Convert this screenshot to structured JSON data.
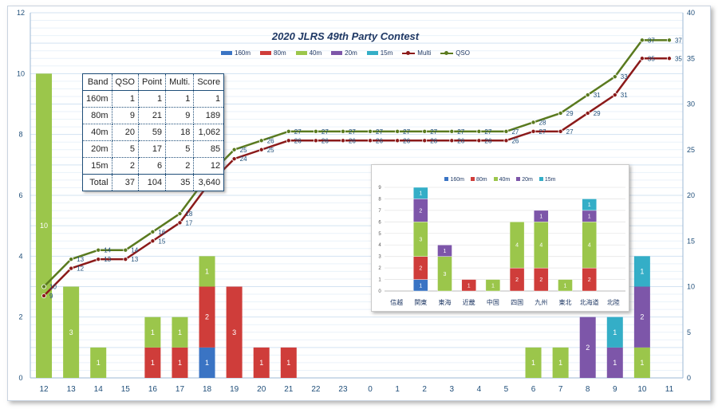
{
  "colors": {
    "b160": "#3a74c4",
    "b80": "#cf3d3a",
    "b40": "#9bc64b",
    "b20": "#7d56a9",
    "b15": "#34aec7",
    "multi": "#8b1a1a",
    "qso": "#5a7a1f"
  },
  "chart_data": [
    {
      "type": "bar",
      "title": "2020 JLRS 49th Party Contest",
      "categories": [
        "12",
        "13",
        "14",
        "15",
        "16",
        "17",
        "18",
        "19",
        "20",
        "21",
        "22",
        "23",
        "0",
        "1",
        "2",
        "3",
        "4",
        "5",
        "6",
        "7",
        "8",
        "9",
        "10",
        "11"
      ],
      "ylim": [
        0,
        12
      ],
      "yticks": [
        "0",
        "2",
        "4",
        "6",
        "8",
        "10",
        "12"
      ],
      "y2lim": [
        0,
        40
      ],
      "y2ticks": [
        "0",
        "5",
        "10",
        "15",
        "20",
        "25",
        "30",
        "35",
        "40"
      ],
      "series": [
        {
          "name": "160m",
          "values": [
            0,
            0,
            0,
            0,
            0,
            0,
            1,
            0,
            0,
            0,
            0,
            0,
            0,
            0,
            0,
            0,
            0,
            0,
            0,
            0,
            0,
            0,
            0,
            0
          ]
        },
        {
          "name": "80m",
          "values": [
            0,
            0,
            0,
            0,
            1,
            1,
            2,
            3,
            1,
            1,
            0,
            0,
            0,
            0,
            0,
            0,
            0,
            0,
            0,
            0,
            0,
            0,
            0,
            0
          ]
        },
        {
          "name": "40m",
          "values": [
            10,
            3,
            1,
            0,
            1,
            1,
            1,
            0,
            0,
            0,
            0,
            0,
            0,
            0,
            0,
            0,
            0,
            0,
            1,
            1,
            0,
            0,
            1,
            0
          ]
        },
        {
          "name": "20m",
          "values": [
            0,
            0,
            0,
            0,
            0,
            0,
            0,
            0,
            0,
            0,
            0,
            0,
            0,
            0,
            0,
            0,
            0,
            0,
            0,
            0,
            2,
            1,
            2,
            0
          ]
        },
        {
          "name": "15m",
          "values": [
            0,
            0,
            0,
            0,
            0,
            0,
            0,
            0,
            0,
            0,
            0,
            0,
            0,
            0,
            0,
            0,
            0,
            0,
            0,
            0,
            0,
            1,
            1,
            0
          ]
        },
        {
          "name": "Multi",
          "type": "line",
          "axis": "right",
          "values": [
            9,
            12,
            13,
            13,
            15,
            17,
            21,
            24,
            25,
            26,
            26,
            26,
            26,
            26,
            26,
            26,
            26,
            26,
            27,
            27,
            29,
            31,
            35,
            35
          ]
        },
        {
          "name": "QSO",
          "type": "line",
          "axis": "right",
          "values": [
            10,
            13,
            14,
            14,
            16,
            18,
            22,
            25,
            26,
            27,
            27,
            27,
            27,
            27,
            27,
            27,
            27,
            27,
            28,
            29,
            31,
            33,
            37,
            37
          ]
        }
      ]
    },
    {
      "type": "bar",
      "categories": [
        "信越",
        "関東",
        "東海",
        "近畿",
        "中国",
        "四国",
        "九州",
        "東北",
        "北海道",
        "北陸"
      ],
      "ylim": [
        0,
        9
      ],
      "yticks": [
        "0",
        "1",
        "2",
        "3",
        "4",
        "5",
        "6",
        "7",
        "8",
        "9"
      ],
      "series": [
        {
          "name": "160m",
          "values": [
            0,
            1,
            0,
            0,
            0,
            0,
            0,
            0,
            0,
            0
          ]
        },
        {
          "name": "80m",
          "values": [
            0,
            2,
            0,
            1,
            0,
            2,
            2,
            0,
            2,
            0
          ]
        },
        {
          "name": "40m",
          "values": [
            0,
            3,
            3,
            0,
            1,
            4,
            4,
            1,
            4,
            0
          ]
        },
        {
          "name": "20m",
          "values": [
            0,
            2,
            1,
            0,
            0,
            0,
            1,
            0,
            1,
            0
          ]
        },
        {
          "name": "15m",
          "values": [
            0,
            1,
            0,
            0,
            0,
            0,
            0,
            0,
            1,
            0
          ]
        }
      ]
    },
    {
      "type": "table",
      "header": [
        "Band",
        "QSO",
        "Point",
        "Multi.",
        "Score"
      ],
      "rows": [
        [
          "160m",
          "1",
          "1",
          "1",
          "1"
        ],
        [
          "80m",
          "9",
          "21",
          "9",
          "189"
        ],
        [
          "40m",
          "20",
          "59",
          "18",
          "1,062"
        ],
        [
          "20m",
          "5",
          "17",
          "5",
          "85"
        ],
        [
          "15m",
          "2",
          "6",
          "2",
          "12"
        ],
        [
          "Total",
          "37",
          "104",
          "35",
          "3,640"
        ]
      ]
    }
  ]
}
